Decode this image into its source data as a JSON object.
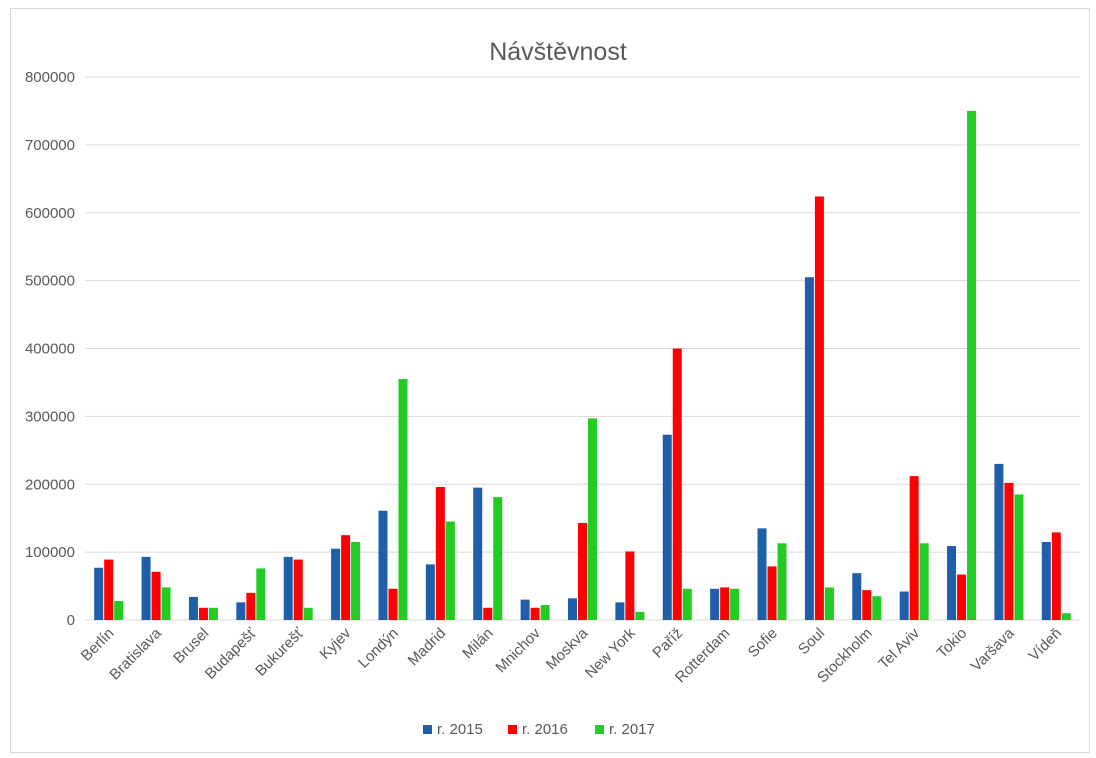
{
  "chart_data": {
    "type": "bar",
    "title": "Návštěvnost",
    "xlabel": "",
    "ylabel": "",
    "ylim": [
      0,
      800000
    ],
    "yticks": [
      0,
      100000,
      200000,
      300000,
      400000,
      500000,
      600000,
      700000,
      800000
    ],
    "yticklabels": [
      "0",
      "100000",
      "200000",
      "300000",
      "400000",
      "500000",
      "600000",
      "700000",
      "800000"
    ],
    "grid": true,
    "legend_position": "bottom",
    "categories": [
      "Berlín",
      "Bratislava",
      "Brusel",
      "Budapešť",
      "Bukurešť",
      "Kyjev",
      "Londýn",
      "Madrid",
      "Milán",
      "Mnichov",
      "Moskva",
      "New York",
      "Paříž",
      "Rotterdam",
      "Sofie",
      "Soul",
      "Stockholm",
      "Tel Aviv",
      "Tokio",
      "Varšava",
      "Vídeň"
    ],
    "series": [
      {
        "name": "r. 2015",
        "color": "#1f5ea8",
        "values": [
          77000,
          93000,
          34000,
          26000,
          93000,
          105000,
          161000,
          82000,
          195000,
          30000,
          32000,
          26000,
          273000,
          46000,
          135000,
          505000,
          69000,
          42000,
          109000,
          230000,
          115000
        ]
      },
      {
        "name": "r. 2016",
        "color": "#ff0000",
        "values": [
          89000,
          71000,
          18000,
          40000,
          89000,
          125000,
          46000,
          196000,
          18000,
          18000,
          143000,
          101000,
          400000,
          48000,
          79000,
          624000,
          44000,
          212000,
          67000,
          202000,
          129000
        ]
      },
      {
        "name": "r. 2017",
        "color": "#22cc22",
        "values": [
          28000,
          48000,
          18000,
          76000,
          18000,
          115000,
          355000,
          145000,
          181000,
          22000,
          297000,
          12000,
          46000,
          46000,
          113000,
          48000,
          35000,
          113000,
          750000,
          185000,
          10000
        ]
      }
    ]
  }
}
